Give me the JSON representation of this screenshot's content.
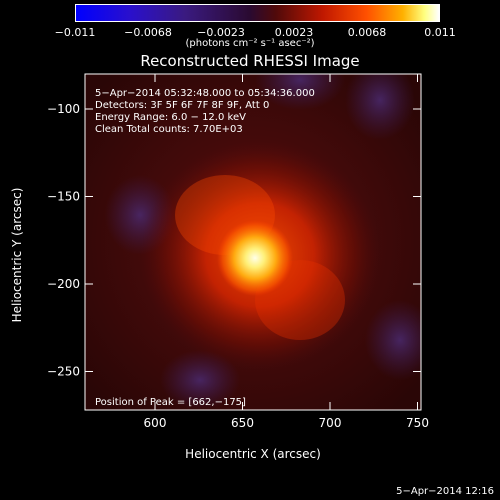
{
  "colorbar": {
    "ticks": [
      "−0.011",
      "−0.0068",
      "−0.0023",
      "0.0023",
      "0.0068",
      "0.011"
    ],
    "unit_label": "(photons cm⁻² s⁻¹ asec⁻²)",
    "range": [
      -0.011,
      0.011
    ]
  },
  "info": {
    "time_range": "5−Apr−2014 05:32:48.000 to 05:34:36.000",
    "detectors": "Detectors: 3F 5F 6F 7F 8F 9F, Att 0",
    "energy_range": "Energy Range: 6.0 − 12.0 keV",
    "method_counts": "Clean     Total counts: 7.70E+03",
    "peak": "Position of Peak = [662,−175]"
  },
  "timestamp": "5−Apr−2014 12:16",
  "chart_data": {
    "type": "heatmap",
    "title": "Reconstructed RHESSI Image",
    "xlabel": "Heliocentric X (arcsec)",
    "ylabel": "Heliocentric Y (arcsec)",
    "xlim": [
      560,
      752
    ],
    "ylim": [
      -272,
      -80
    ],
    "xticks": [
      600,
      650,
      700,
      750
    ],
    "yticks": [
      -100,
      -150,
      -200,
      -250
    ],
    "colorscale": "idl-red-temperature",
    "peak_position": [
      662,
      -175
    ],
    "peak_value": 0.011
  }
}
